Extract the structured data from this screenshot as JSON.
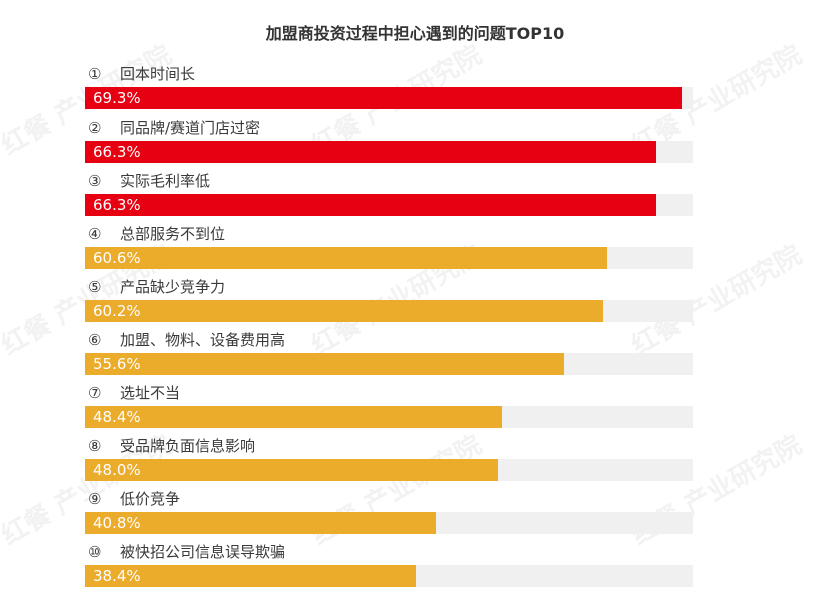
{
  "chart_data": {
    "type": "bar",
    "orientation": "horizontal",
    "title": "加盟商投资过程中担心遇到的问题TOP10",
    "xlim": [
      0,
      70.6
    ],
    "grid": false,
    "categories": [
      {
        "num": "①",
        "label": "回本时间长"
      },
      {
        "num": "②",
        "label": "同品牌/赛道门店过密"
      },
      {
        "num": "③",
        "label": "实际毛利率低"
      },
      {
        "num": "④",
        "label": "总部服务不到位"
      },
      {
        "num": "⑤",
        "label": "产品缺少竞争力"
      },
      {
        "num": "⑥",
        "label": "加盟、物料、设备费用高"
      },
      {
        "num": "⑦",
        "label": "选址不当"
      },
      {
        "num": "⑧",
        "label": "受品牌负面信息影响"
      },
      {
        "num": "⑨",
        "label": "低价竞争"
      },
      {
        "num": "⑩",
        "label": "被快招公司信息误导欺骗"
      }
    ],
    "values": [
      69.3,
      66.3,
      66.3,
      60.6,
      60.2,
      55.6,
      48.4,
      48.0,
      40.8,
      38.4
    ],
    "value_labels": [
      "69.3%",
      "66.3%",
      "66.3%",
      "60.6%",
      "60.2%",
      "55.6%",
      "48.4%",
      "48.0%",
      "40.8%",
      "38.4%"
    ],
    "colors": {
      "top3": "#e60012",
      "others": "#ebab2b",
      "track": "#f0f0f0"
    }
  },
  "watermark": "红餐 产业研究院"
}
